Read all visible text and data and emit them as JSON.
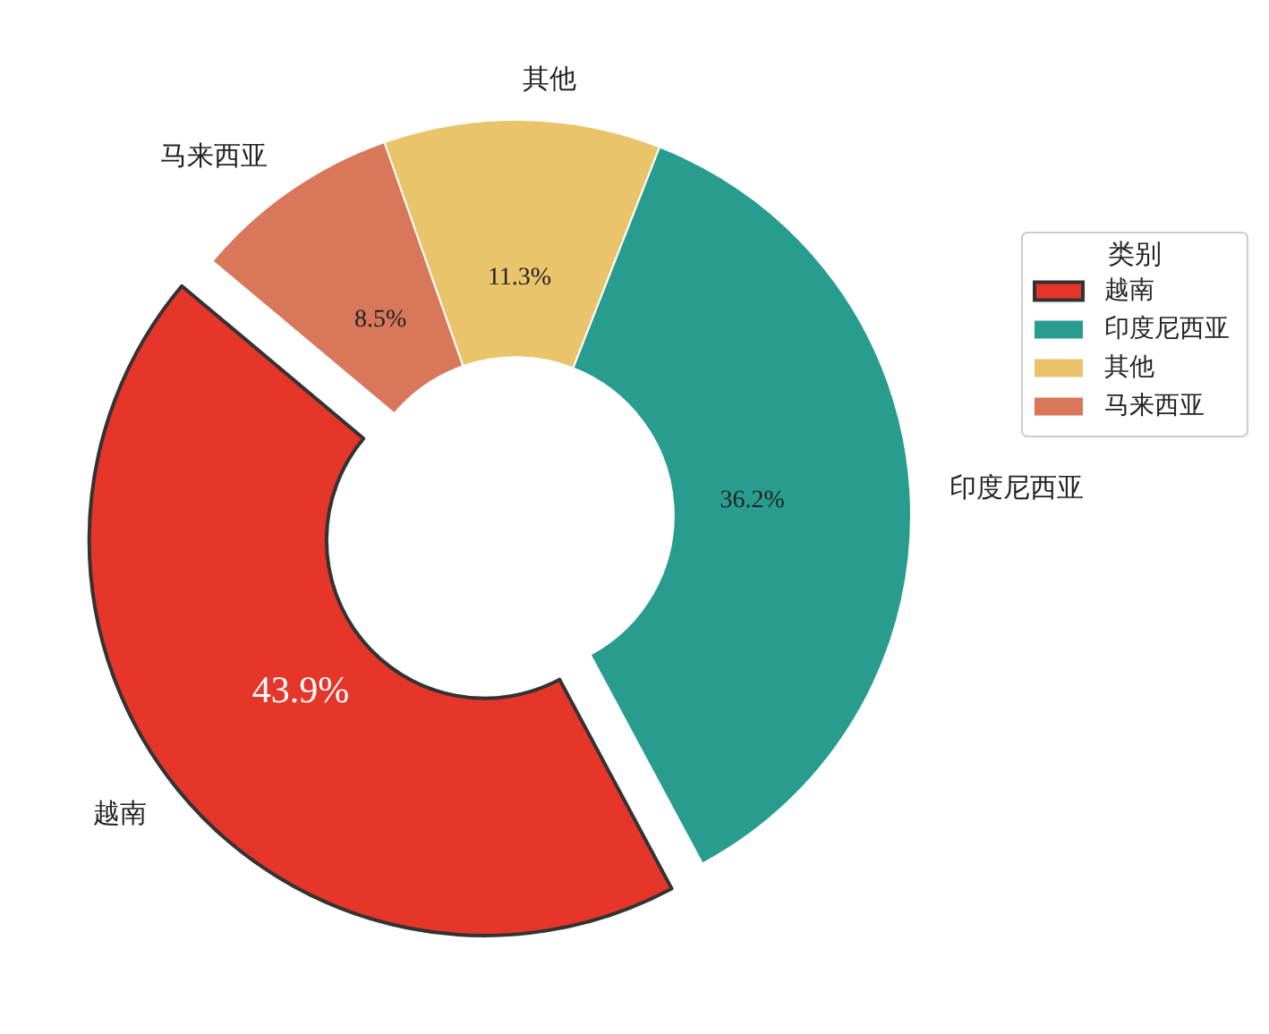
{
  "chart_data": {
    "type": "donut",
    "categories": [
      "越南",
      "印度尼西亚",
      "其他",
      "马来西亚"
    ],
    "values": [
      43.9,
      36.2,
      11.3,
      8.5
    ],
    "value_labels": [
      "43.9%",
      "36.2%",
      "11.3%",
      "8.5%"
    ],
    "colors": [
      "#e63529",
      "#289d8f",
      "#e9c46a",
      "#d9775b"
    ],
    "legend": "right",
    "legend_title": "类别"
  }
}
